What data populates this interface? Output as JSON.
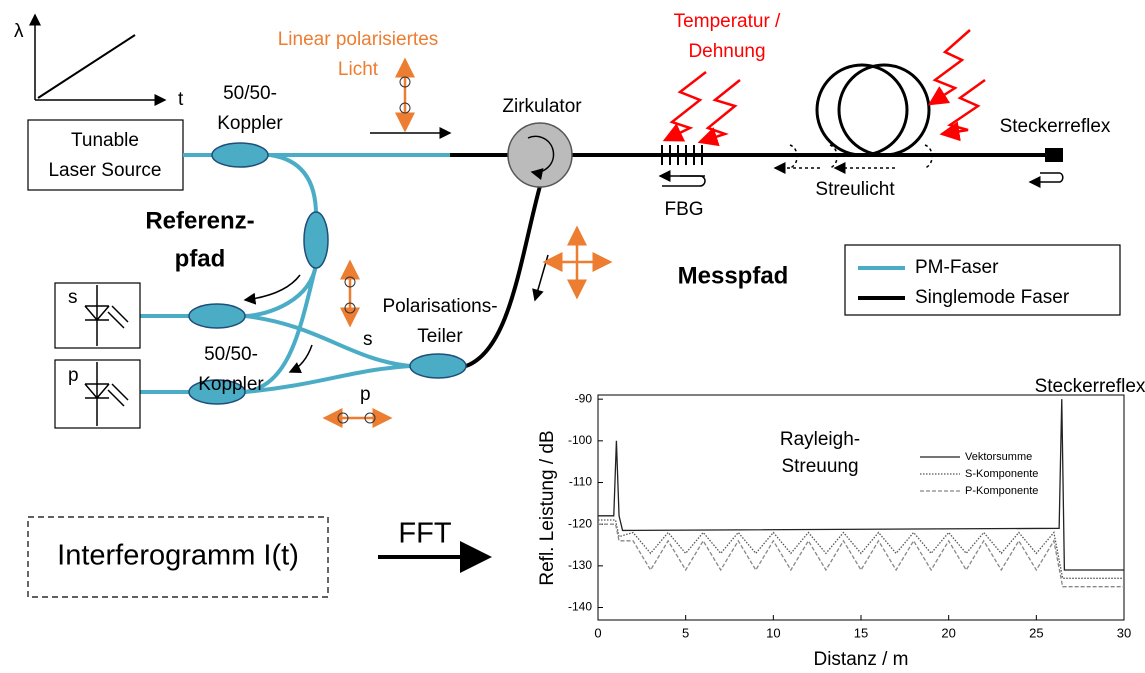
{
  "diagram": {
    "plot_y": "λ",
    "plot_x": "t",
    "laser": [
      "Tunable",
      "Laser Source"
    ],
    "coupler_top": [
      "50/50-",
      "Koppler"
    ],
    "light": [
      "Linear polarisiertes",
      "Licht"
    ],
    "circulator": "Zirkulator",
    "disturbance": [
      "Temperatur /",
      "Dehnung"
    ],
    "connector": "Steckerreflex",
    "fbg": "FBG",
    "scatter": "Streulicht",
    "reference": [
      "Referenz-",
      "pfad"
    ],
    "measurement": "Messpfad",
    "legend": [
      "PM-Faser",
      "Singlemode Faser"
    ],
    "detectors": [
      "s",
      "p"
    ],
    "splitter": [
      "Polarisations-",
      "Teiler"
    ],
    "splitter_outputs": [
      "s",
      "p"
    ],
    "coupler_bottom": [
      "50/50-",
      "Koppler"
    ],
    "interferogram": "Interferogramm I(t)",
    "fft": "FFT"
  },
  "chart_data": {
    "type": "line",
    "xlabel": "Distanz / m",
    "ylabel": "Refl. Leistung / dB",
    "xlim": [
      0,
      30
    ],
    "ylim": [
      -143,
      -89
    ],
    "xticks": [
      0,
      5,
      10,
      15,
      20,
      25,
      30
    ],
    "yticks": [
      -90,
      -100,
      -110,
      -120,
      -130,
      -140
    ],
    "annotations": [
      "Rayleigh-",
      "Streuung",
      "Steckerreflex"
    ],
    "series": [
      {
        "name": "Vektorsumme",
        "color": "#222222",
        "dash": "solid",
        "x": [
          0,
          0.9,
          1.05,
          1.2,
          1.4,
          26.3,
          26.45,
          26.6,
          30
        ],
        "values": [
          -118,
          -118,
          -100,
          -118,
          -121.5,
          -121,
          -90,
          -131,
          -131
        ]
      },
      {
        "name": "S-Komponente",
        "color": "#555555",
        "dash": "dotted",
        "x": [
          0,
          1,
          1.2,
          2,
          3,
          4,
          5,
          6,
          7,
          8,
          9,
          10,
          11,
          12,
          13,
          14,
          15,
          16,
          17,
          18,
          19,
          20,
          21,
          22,
          23,
          24,
          25,
          26,
          26.5,
          30
        ],
        "values": [
          -119,
          -119,
          -123,
          -122,
          -127,
          -122,
          -127,
          -122,
          -127,
          -122,
          -127,
          -122,
          -127,
          -122,
          -127,
          -122,
          -127,
          -122,
          -127,
          -122,
          -127,
          -122,
          -127,
          -122,
          -127,
          -122,
          -127,
          -122,
          -133,
          -133
        ]
      },
      {
        "name": "P-Komponente",
        "color": "#888888",
        "dash": "dashed",
        "x": [
          0,
          1,
          1.2,
          2,
          3,
          4,
          5,
          6,
          7,
          8,
          9,
          10,
          11,
          12,
          13,
          14,
          15,
          16,
          17,
          18,
          19,
          20,
          21,
          22,
          23,
          24,
          25,
          26,
          26.5,
          30
        ],
        "values": [
          -120,
          -120,
          -124,
          -124,
          -131,
          -124,
          -131,
          -124,
          -131,
          -124,
          -131,
          -124,
          -131,
          -124,
          -131,
          -124,
          -131,
          -124,
          -131,
          -124,
          -131,
          -124,
          -131,
          -124,
          -131,
          -124,
          -131,
          -124,
          -135,
          -135
        ]
      }
    ]
  }
}
